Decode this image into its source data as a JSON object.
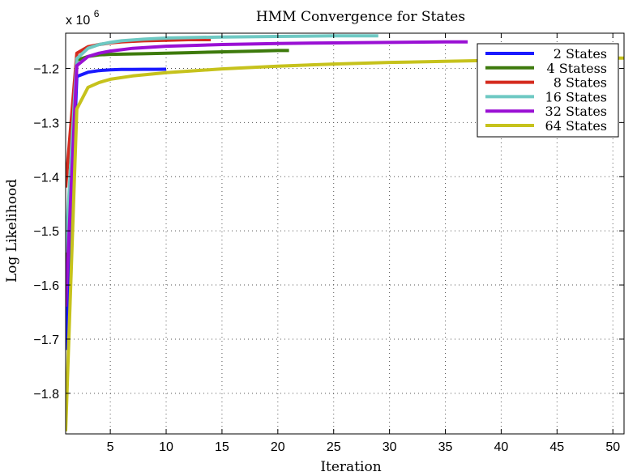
{
  "chart_data": {
    "type": "line",
    "title": "HMM Convergence for States",
    "xlabel": "Iteration",
    "ylabel": "Log Likelihood",
    "y_multiplier_label": "x 10",
    "y_multiplier_exponent": "6",
    "xlim": [
      1,
      51
    ],
    "ylim": [
      -1.875,
      -1.135
    ],
    "x_ticks": [
      5,
      10,
      15,
      20,
      25,
      30,
      35,
      40,
      45,
      50
    ],
    "x_tick_labels": [
      "5",
      "10",
      "15",
      "20",
      "25",
      "30",
      "35",
      "40",
      "45",
      "50"
    ],
    "y_ticks": [
      -1.8,
      -1.7,
      -1.6,
      -1.5,
      -1.4,
      -1.3,
      -1.2
    ],
    "y_tick_labels": [
      "−1.8",
      "−1.7",
      "−1.6",
      "−1.5",
      "−1.4",
      "−1.3",
      "−1.2"
    ],
    "grid": true,
    "legend_position": "top-right",
    "series": [
      {
        "name": "2 States",
        "color": "#1a1aff",
        "x": [
          1,
          2,
          3,
          4,
          5,
          6,
          7,
          8,
          9,
          10
        ],
        "y": [
          -1.72,
          -1.215,
          -1.207,
          -1.204,
          -1.2025,
          -1.202,
          -1.2018,
          -1.2017,
          -1.2016,
          -1.2015
        ]
      },
      {
        "name": "4 Statess",
        "color": "#3d7a0c",
        "x": [
          1,
          2,
          3,
          4,
          5,
          8,
          10,
          12,
          14,
          16,
          18,
          20,
          21
        ],
        "y": [
          -1.6,
          -1.185,
          -1.178,
          -1.175,
          -1.174,
          -1.173,
          -1.172,
          -1.171,
          -1.17,
          -1.169,
          -1.168,
          -1.167,
          -1.167
        ]
      },
      {
        "name": "8 States",
        "color": "#d52b1e",
        "x": [
          1,
          2,
          3,
          4,
          5,
          6,
          8,
          10,
          12,
          14
        ],
        "y": [
          -1.42,
          -1.172,
          -1.16,
          -1.156,
          -1.153,
          -1.151,
          -1.149,
          -1.148,
          -1.147,
          -1.147
        ]
      },
      {
        "name": "16 States",
        "color": "#6ec9c3",
        "x": [
          1,
          2,
          3,
          4,
          5,
          6,
          8,
          10,
          15,
          20,
          25,
          29
        ],
        "y": [
          -1.54,
          -1.182,
          -1.163,
          -1.156,
          -1.152,
          -1.149,
          -1.146,
          -1.144,
          -1.142,
          -1.141,
          -1.14,
          -1.14
        ]
      },
      {
        "name": "32 States",
        "color": "#9a10d4",
        "x": [
          1,
          2,
          3,
          4,
          5,
          7,
          10,
          15,
          20,
          25,
          30,
          35,
          37
        ],
        "y": [
          -1.64,
          -1.195,
          -1.178,
          -1.172,
          -1.168,
          -1.163,
          -1.159,
          -1.156,
          -1.154,
          -1.153,
          -1.152,
          -1.151,
          -1.151
        ]
      },
      {
        "name": "64 States",
        "color": "#c6c21c",
        "x": [
          1,
          2,
          3,
          4,
          5,
          7,
          10,
          15,
          20,
          25,
          30,
          35,
          40,
          45,
          50,
          51
        ],
        "y": [
          -1.87,
          -1.275,
          -1.235,
          -1.226,
          -1.22,
          -1.214,
          -1.208,
          -1.201,
          -1.196,
          -1.192,
          -1.189,
          -1.187,
          -1.185,
          -1.183,
          -1.181,
          -1.181
        ]
      }
    ]
  }
}
